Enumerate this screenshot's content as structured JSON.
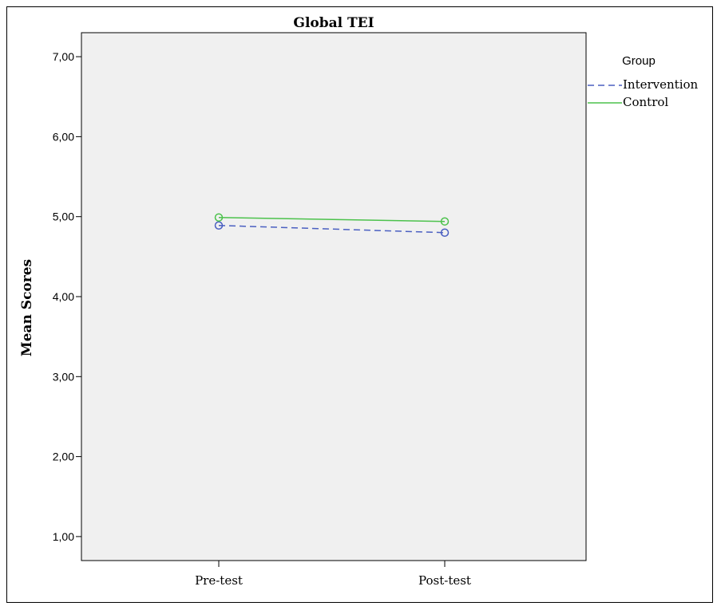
{
  "chart_data": {
    "type": "line",
    "title": "Global TEI",
    "ylabel": "Mean Scores",
    "xlabel": "",
    "categories": [
      "Pre-test",
      "Post-test"
    ],
    "ylim": [
      0.7,
      7.3
    ],
    "yticks": [
      1,
      2,
      3,
      4,
      5,
      6,
      7
    ],
    "ytick_labels": [
      "1,00",
      "2,00",
      "3,00",
      "4,00",
      "5,00",
      "6,00",
      "7,00"
    ],
    "grid": false,
    "legend": {
      "title": "Group",
      "placement": "right-top",
      "entries": [
        "Intervention",
        "Control"
      ]
    },
    "series": [
      {
        "name": "Intervention",
        "values": [
          4.89,
          4.8
        ],
        "color": "#4a5fc1",
        "dash": "dashed",
        "marker": "circle"
      },
      {
        "name": "Control",
        "values": [
          4.99,
          4.94
        ],
        "color": "#4cc24c",
        "dash": "solid",
        "marker": "circle"
      }
    ]
  },
  "colors": {
    "plot_background": "#f0f0f0",
    "axis": "#000000"
  }
}
